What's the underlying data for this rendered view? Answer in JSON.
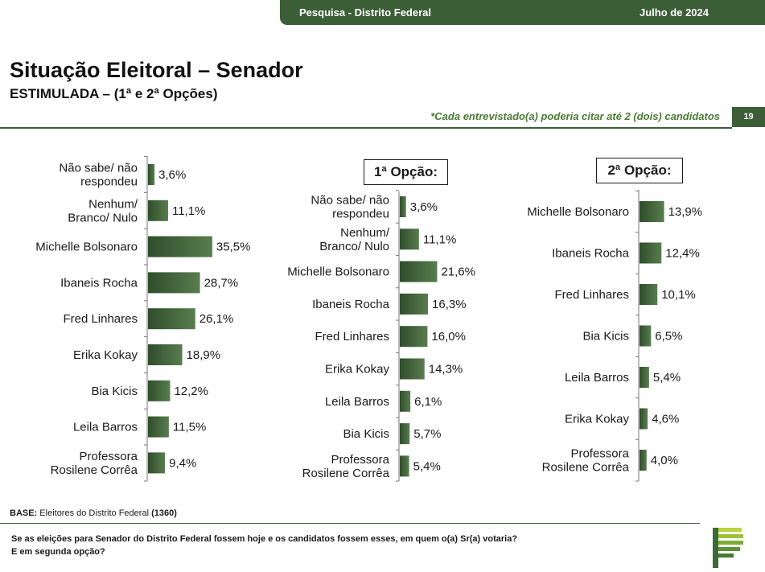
{
  "header": {
    "survey": "Pesquisa - Distrito Federal",
    "date": "Julho de 2024"
  },
  "title": "Situação Eleitoral – Senador",
  "subtitle": "ESTIMULADA – (1ª e 2ª Opções)",
  "note": "*Cada entrevistado(a) poderia citar até 2 (dois) candidatos",
  "page_number": "19",
  "base": {
    "label": "BASE:",
    "text": " Eleitores do Distrito Federal ",
    "count": "(1360)"
  },
  "question": [
    "Se as eleições para Senador do Distrito Federal fossem hoje e os candidatos fossem esses, em quem o(a) Sr(a) votaria?",
    "E em segunda opção?"
  ],
  "colors": {
    "primary": "#3b5e37",
    "bar": "#4a6e42",
    "accent": "#4a7a34"
  },
  "chart_data": [
    {
      "type": "bar",
      "orientation": "horizontal",
      "title": "",
      "categories": [
        "Não sabe/ não respondeu",
        "Nenhum/ Branco/ Nulo",
        "Michelle Bolsonaro",
        "Ibaneis Rocha",
        "Fred Linhares",
        "Erika Kokay",
        "Bia Kicis",
        "Leila Barros",
        "Professora Rosilene Corrêa"
      ],
      "values": [
        3.6,
        11.1,
        35.5,
        28.7,
        26.1,
        18.9,
        12.2,
        11.5,
        9.4
      ],
      "labels": [
        "3,6%",
        "11,1%",
        "35,5%",
        "28,7%",
        "26,1%",
        "18,9%",
        "12,2%",
        "11,5%",
        "9,4%"
      ],
      "unit": "%"
    },
    {
      "type": "bar",
      "orientation": "horizontal",
      "title": "1ª Opção:",
      "categories": [
        "Não sabe/ não respondeu",
        "Nenhum/ Branco/ Nulo",
        "Michelle Bolsonaro",
        "Ibaneis Rocha",
        "Fred Linhares",
        "Erika Kokay",
        "Leila Barros",
        "Bia Kicis",
        "Professora Rosilene Corrêa"
      ],
      "values": [
        3.6,
        11.1,
        21.6,
        16.3,
        16.0,
        14.3,
        6.1,
        5.7,
        5.4
      ],
      "labels": [
        "3,6%",
        "11,1%",
        "21,6%",
        "16,3%",
        "16,0%",
        "14,3%",
        "6,1%",
        "5,7%",
        "5,4%"
      ],
      "unit": "%"
    },
    {
      "type": "bar",
      "orientation": "horizontal",
      "title": "2ª Opção:",
      "categories": [
        "Michelle Bolsonaro",
        "Ibaneis Rocha",
        "Fred Linhares",
        "Bia Kicis",
        "Leila Barros",
        "Erika Kokay",
        "Professora Rosilene Corrêa"
      ],
      "values": [
        13.9,
        12.4,
        10.1,
        6.5,
        5.4,
        4.6,
        4.0
      ],
      "labels": [
        "13,9%",
        "12,4%",
        "10,1%",
        "6,5%",
        "5,4%",
        "4,6%",
        "4,0%"
      ],
      "unit": "%"
    }
  ]
}
